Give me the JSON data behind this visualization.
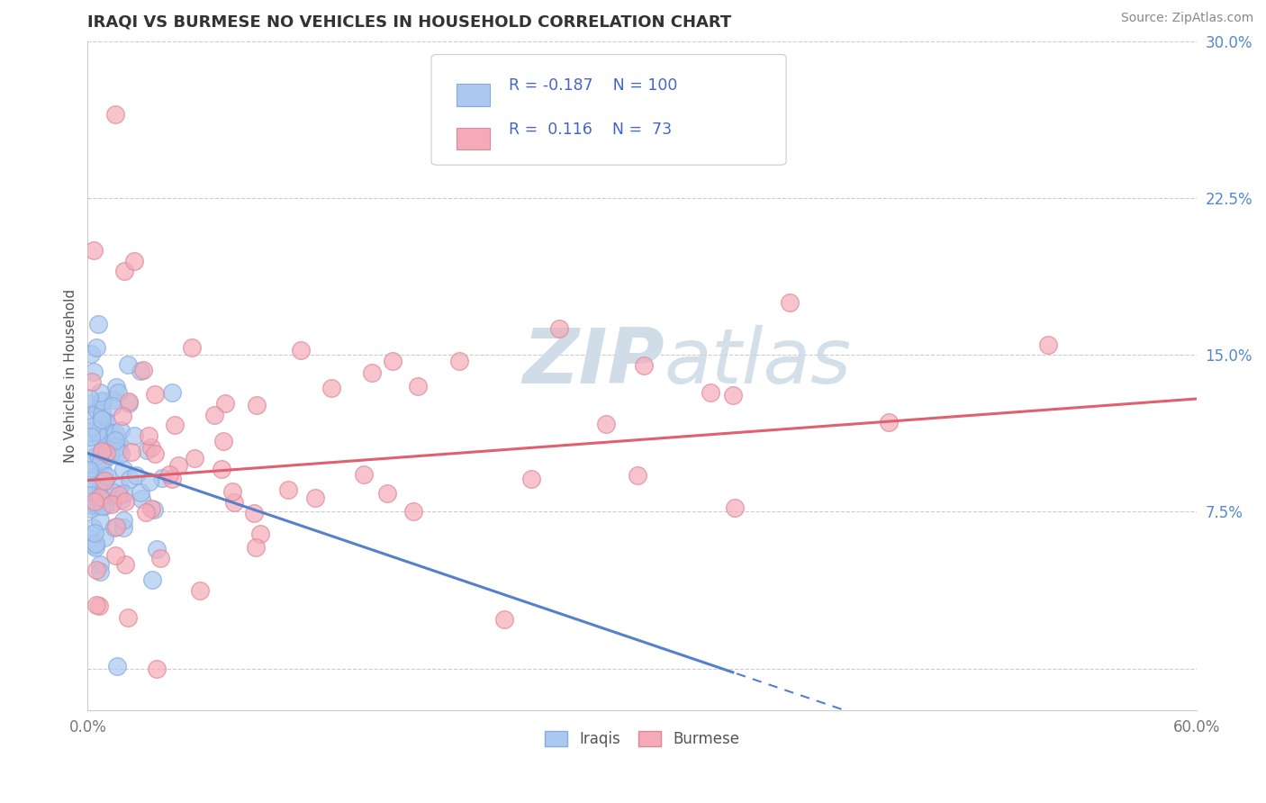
{
  "title": "IRAQI VS BURMESE NO VEHICLES IN HOUSEHOLD CORRELATION CHART",
  "source": "Source: ZipAtlas.com",
  "ylabel": "No Vehicles in Household",
  "xmin": 0.0,
  "xmax": 0.6,
  "ymin": -0.02,
  "ymax": 0.3,
  "iraqis_color": "#aac8f0",
  "iraqis_edge": "#88aadd",
  "burmese_color": "#f5aab8",
  "burmese_edge": "#dd8898",
  "regression_iraqi_color": "#5580cc",
  "regression_burmese_color": "#e06070",
  "legend_text_color": "#4466cc",
  "R_iraqi": -0.187,
  "N_iraqi": 100,
  "R_burmese": 0.116,
  "N_burmese": 73,
  "ytick_color": "#5588cc",
  "iraqi_intercept": 0.103,
  "iraqi_slope": -0.3,
  "burmese_intercept": 0.09,
  "burmese_slope": 0.065
}
